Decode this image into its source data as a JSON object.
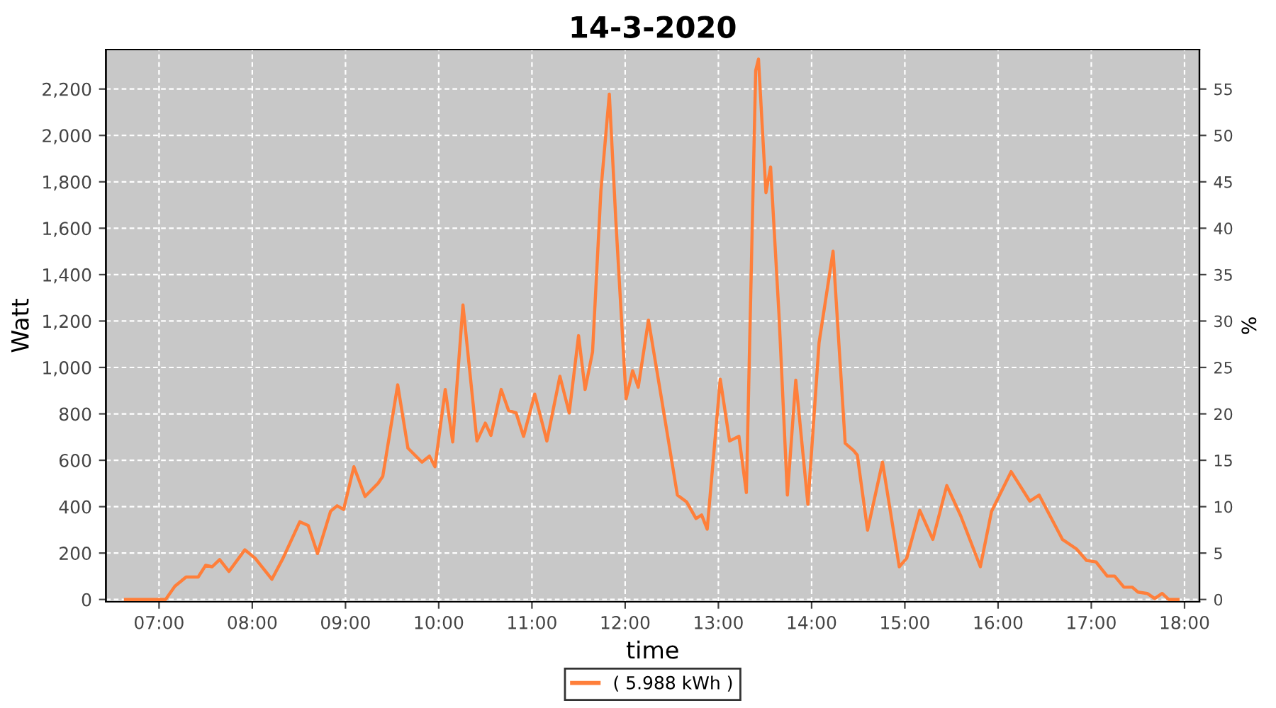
{
  "chart_data": {
    "type": "line",
    "title": "14-3-2020",
    "xlabel": "time",
    "ylabel": "Watt",
    "y2label": "%",
    "xlim": [
      6.43,
      18.16
    ],
    "ylim": [
      -10,
      2370
    ],
    "y2lim": [
      -0.25,
      59.25
    ],
    "xticks": [
      {
        "value": 7,
        "label": "07:00"
      },
      {
        "value": 8,
        "label": "08:00"
      },
      {
        "value": 9,
        "label": "09:00"
      },
      {
        "value": 10,
        "label": "10:00"
      },
      {
        "value": 11,
        "label": "11:00"
      },
      {
        "value": 12,
        "label": "12:00"
      },
      {
        "value": 13,
        "label": "13:00"
      },
      {
        "value": 14,
        "label": "14:00"
      },
      {
        "value": 15,
        "label": "15:00"
      },
      {
        "value": 16,
        "label": "16:00"
      },
      {
        "value": 17,
        "label": "17:00"
      },
      {
        "value": 18,
        "label": "18:00"
      }
    ],
    "yticks": [
      0,
      200,
      400,
      600,
      800,
      {
        "value": 1000,
        "label": "1,000"
      },
      {
        "value": 1200,
        "label": "1,200"
      },
      {
        "value": 1400,
        "label": "1,400"
      },
      {
        "value": 1600,
        "label": "1,600"
      },
      {
        "value": 1800,
        "label": "1,800"
      },
      {
        "value": 2000,
        "label": "2,000"
      },
      {
        "value": 2200,
        "label": "2,200"
      }
    ],
    "y2ticks": [
      0,
      5,
      10,
      15,
      20,
      25,
      30,
      35,
      40,
      45,
      50,
      55
    ],
    "grid": true,
    "legend": "bottom",
    "marker": "none",
    "line_style": "solid",
    "series": [
      {
        "name": "( 5.988 kWh )",
        "color": "#ff7f3a",
        "x": [
          6.64,
          7.07,
          7.17,
          7.29,
          7.42,
          7.5,
          7.57,
          7.65,
          7.75,
          7.92,
          8.03,
          8.21,
          8.33,
          8.51,
          8.6,
          8.7,
          8.84,
          8.91,
          8.98,
          9.09,
          9.21,
          9.35,
          9.4,
          9.56,
          9.67,
          9.82,
          9.9,
          9.96,
          10.07,
          10.15,
          10.26,
          10.41,
          10.5,
          10.56,
          10.67,
          10.75,
          10.83,
          10.91,
          11.03,
          11.16,
          11.3,
          11.4,
          11.5,
          11.57,
          11.65,
          11.74,
          11.83,
          11.9,
          12.01,
          12.08,
          12.14,
          12.25,
          12.39,
          12.56,
          12.66,
          12.76,
          12.82,
          12.88,
          13.02,
          13.12,
          13.22,
          13.3,
          13.4,
          13.43,
          13.51,
          13.56,
          13.65,
          13.74,
          13.83,
          13.96,
          14.08,
          14.23,
          14.36,
          14.45,
          14.49,
          14.6,
          14.76,
          14.94,
          15.02,
          15.16,
          15.3,
          15.45,
          15.6,
          15.81,
          15.93,
          16.14,
          16.34,
          16.44,
          16.69,
          16.84,
          16.95,
          17.05,
          17.17,
          17.25,
          17.35,
          17.44,
          17.5,
          17.6,
          17.68,
          17.76,
          17.83,
          17.93
        ],
        "values": [
          0,
          0,
          57,
          97,
          97,
          147,
          141,
          172,
          121,
          214,
          178,
          87,
          178,
          335,
          319,
          198,
          380,
          404,
          388,
          572,
          444,
          501,
          531,
          925,
          652,
          592,
          618,
          572,
          905,
          679,
          1269,
          683,
          760,
          707,
          905,
          814,
          804,
          703,
          885,
          683,
          962,
          804,
          1137,
          905,
          1067,
          1763,
          2178,
          1632,
          865,
          986,
          915,
          1204,
          865,
          450,
          420,
          349,
          364,
          303,
          949,
          683,
          703,
          461,
          2279,
          2329,
          1753,
          1864,
          1228,
          450,
          945,
          410,
          1107,
          1501,
          673,
          642,
          622,
          299,
          592,
          141,
          178,
          384,
          259,
          491,
          360,
          141,
          380,
          551,
          424,
          450,
          259,
          218,
          168,
          162,
          101,
          101,
          53,
          53,
          32,
          26,
          4,
          26,
          0,
          0
        ]
      }
    ]
  }
}
